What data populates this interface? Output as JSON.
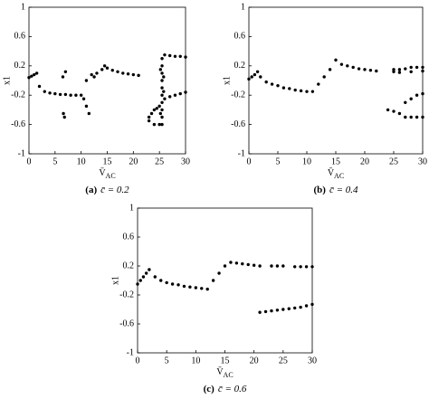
{
  "chart_data": [
    {
      "type": "scatter",
      "label": "(a)",
      "caption": "c̄ = 0.2",
      "x_label": "V̄",
      "x_label_sub": "AC",
      "y_label": "x1",
      "xlim": [
        0,
        30
      ],
      "xticks": [
        0,
        5,
        10,
        15,
        20,
        25,
        30
      ],
      "ylim": [
        -1,
        1
      ],
      "yticks": [
        -1,
        -0.6,
        -0.2,
        0.2,
        0.6,
        1
      ],
      "color": "#000000",
      "x": [
        0,
        0.5,
        1,
        1.5,
        2,
        3,
        4,
        5,
        6,
        7,
        8,
        9,
        10,
        6.5,
        7,
        6.8,
        6.6,
        10.5,
        11,
        11.5,
        11,
        12,
        12.5,
        13,
        14,
        14.5,
        15,
        16,
        17,
        18,
        19,
        20,
        21,
        23,
        23.5,
        24,
        24.5,
        25,
        23,
        24,
        25,
        25.5,
        25.5,
        25.5,
        25.5,
        25.5,
        25.5,
        25.5,
        25.5,
        25.5,
        25.5,
        25.2,
        25.8,
        25.2,
        25.8,
        26,
        27,
        28,
        29,
        30,
        26,
        27,
        28,
        29,
        30
      ],
      "values": [
        0.04,
        0.06,
        0.08,
        0.1,
        -0.08,
        -0.15,
        -0.17,
        -0.18,
        -0.19,
        -0.19,
        -0.2,
        -0.2,
        -0.2,
        0.05,
        0.12,
        -0.5,
        -0.45,
        -0.25,
        -0.35,
        -0.45,
        0.0,
        0.08,
        0.05,
        0.1,
        0.15,
        0.2,
        0.17,
        0.14,
        0.12,
        0.1,
        0.09,
        0.08,
        0.07,
        -0.5,
        -0.45,
        -0.4,
        -0.38,
        -0.35,
        -0.55,
        -0.6,
        -0.6,
        -0.6,
        -0.5,
        -0.4,
        -0.3,
        -0.2,
        -0.1,
        0.0,
        0.1,
        0.2,
        0.3,
        -0.45,
        -0.15,
        0.15,
        0.05,
        -0.25,
        -0.22,
        -0.2,
        -0.18,
        -0.16,
        0.35,
        0.34,
        0.33,
        0.33,
        0.32
      ]
    },
    {
      "type": "scatter",
      "label": "(b)",
      "caption": "c̄ = 0.4",
      "x_label": "V̄",
      "x_label_sub": "AC",
      "y_label": "x1",
      "xlim": [
        0,
        30
      ],
      "xticks": [
        0,
        5,
        10,
        15,
        20,
        25,
        30
      ],
      "ylim": [
        -1,
        1
      ],
      "yticks": [
        -1,
        -0.6,
        -0.2,
        0.2,
        0.6,
        1
      ],
      "color": "#000000",
      "x": [
        0,
        0.5,
        1,
        1.5,
        2,
        3,
        4,
        5,
        6,
        7,
        8,
        9,
        10,
        11,
        12,
        13,
        14,
        15,
        16,
        17,
        18,
        19,
        20,
        21,
        22,
        25,
        26,
        27,
        28,
        29,
        30,
        25,
        26,
        28,
        30,
        24,
        25,
        26,
        27,
        28,
        29,
        30,
        27,
        28,
        29,
        30
      ],
      "values": [
        0.02,
        0.05,
        0.08,
        0.12,
        0.05,
        -0.02,
        -0.05,
        -0.07,
        -0.1,
        -0.11,
        -0.13,
        -0.14,
        -0.15,
        -0.15,
        -0.05,
        0.05,
        0.15,
        0.28,
        0.22,
        0.2,
        0.18,
        0.16,
        0.15,
        0.14,
        0.13,
        0.15,
        0.15,
        0.16,
        0.18,
        0.18,
        0.18,
        0.12,
        0.11,
        0.12,
        0.13,
        -0.4,
        -0.42,
        -0.45,
        -0.5,
        -0.5,
        -0.5,
        -0.5,
        -0.3,
        -0.25,
        -0.2,
        -0.18
      ]
    },
    {
      "type": "scatter",
      "label": "(c)",
      "caption": "c̄ = 0.6",
      "x_label": "V̄",
      "x_label_sub": "AC",
      "y_label": "x1",
      "xlim": [
        0,
        30
      ],
      "xticks": [
        0,
        5,
        10,
        15,
        20,
        25,
        30
      ],
      "ylim": [
        -1,
        1
      ],
      "yticks": [
        -1,
        -0.6,
        -0.2,
        0.2,
        0.6,
        1
      ],
      "color": "#000000",
      "x": [
        0,
        0.5,
        1,
        1.5,
        2,
        3,
        4,
        5,
        6,
        7,
        8,
        9,
        10,
        11,
        12,
        13,
        14,
        15,
        16,
        17,
        18,
        19,
        20,
        21,
        23,
        24,
        25,
        27,
        28,
        29,
        30,
        21,
        22,
        23,
        24,
        25,
        26,
        27,
        28,
        29,
        30
      ],
      "values": [
        -0.05,
        0.0,
        0.05,
        0.1,
        0.15,
        0.05,
        0.0,
        -0.03,
        -0.05,
        -0.06,
        -0.08,
        -0.09,
        -0.1,
        -0.11,
        -0.12,
        0.0,
        0.1,
        0.2,
        0.25,
        0.24,
        0.23,
        0.22,
        0.21,
        0.2,
        0.2,
        0.2,
        0.2,
        0.19,
        0.19,
        0.19,
        0.19,
        -0.44,
        -0.43,
        -0.42,
        -0.41,
        -0.4,
        -0.39,
        -0.38,
        -0.37,
        -0.35,
        -0.33
      ]
    }
  ]
}
